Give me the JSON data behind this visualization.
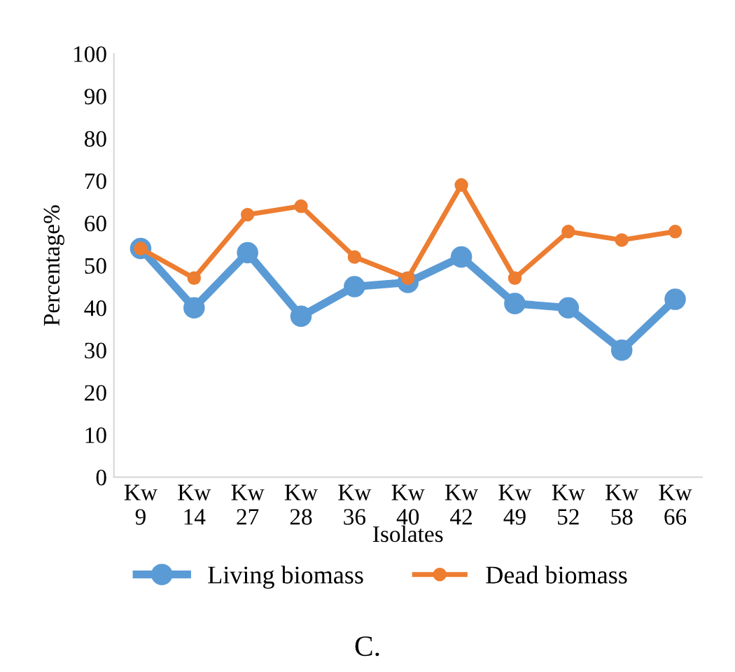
{
  "chart_data": {
    "type": "line",
    "xlabel": "Isolates",
    "ylabel": "Percentage%",
    "categories": [
      "Kw\n9",
      "Kw\n14",
      "Kw\n27",
      "Kw\n28",
      "Kw\n36",
      "Kw\n40",
      "Kw\n42",
      "Kw\n49",
      "Kw\n52",
      "Kw\n58",
      "Kw\n66"
    ],
    "series": [
      {
        "name": "Living biomass",
        "color": "#5b9bd5",
        "values": [
          54,
          40,
          53,
          38,
          45,
          46,
          52,
          41,
          40,
          30,
          42
        ]
      },
      {
        "name": "Dead biomass",
        "color": "#ed7d31",
        "values": [
          54,
          47,
          62,
          64,
          52,
          47,
          69,
          47,
          58,
          56,
          58
        ]
      }
    ],
    "ylim": [
      0,
      100
    ],
    "yticks": [
      0,
      10,
      20,
      30,
      40,
      50,
      60,
      70,
      80,
      90,
      100
    ],
    "marker": "circle",
    "line_style": "solid",
    "grid": false,
    "legend": "bottom",
    "annotations": [
      "C."
    ]
  }
}
